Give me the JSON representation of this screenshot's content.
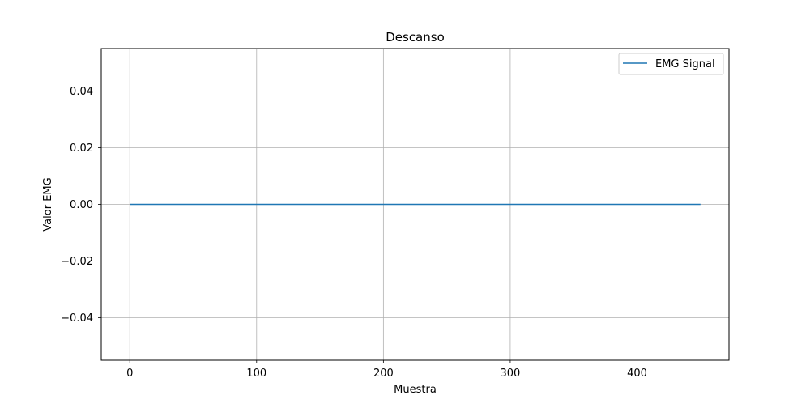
{
  "chart_data": {
    "type": "line",
    "title": "Descanso",
    "xlabel": "Muestra",
    "ylabel": "Valor EMG",
    "xlim": [
      -22.5,
      472.5
    ],
    "ylim": [
      -0.055,
      0.055
    ],
    "xticks": [
      0,
      100,
      200,
      300,
      400
    ],
    "xtick_labels": [
      "0",
      "100",
      "200",
      "300",
      "400"
    ],
    "yticks": [
      0.04,
      0.02,
      0.0,
      -0.02,
      -0.04
    ],
    "ytick_labels": [
      "0.04",
      "0.02",
      "0.00",
      "−0.02",
      "−0.04"
    ],
    "grid": true,
    "legend_position": "upper right",
    "colors": {
      "line": "#1f77b4",
      "grid": "#b0b0b0",
      "axes": "#000000",
      "background": "#ffffff"
    },
    "series": [
      {
        "name": "EMG Signal",
        "x": [
          0,
          450
        ],
        "y": [
          0.0,
          0.0
        ]
      }
    ]
  }
}
